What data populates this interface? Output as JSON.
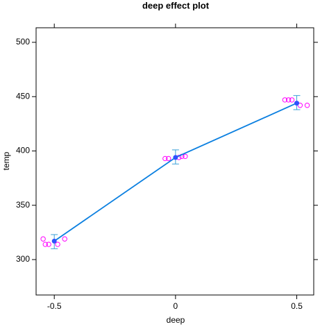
{
  "chart_data": {
    "type": "line",
    "title": "deep effect plot",
    "x_label": "deep",
    "y_label": "temp",
    "x": [
      -0.5,
      0,
      0.5
    ],
    "series": [
      {
        "color": "#0a7fe0",
        "values": [
          317,
          394,
          444
        ],
        "lower": [
          310,
          388,
          438
        ],
        "upper": [
          323,
          401,
          451
        ]
      }
    ],
    "points": {
      "color": "#ff00ff",
      "x": [
        -0.546,
        -0.537,
        -0.523,
        -0.486,
        -0.457,
        -0.043,
        -0.029,
        0.014,
        0.026,
        0.04,
        0.451,
        0.466,
        0.48,
        0.514,
        0.543
      ],
      "values": [
        319,
        314,
        314,
        314,
        319,
        393,
        393,
        394,
        395,
        395,
        447,
        447,
        447,
        442,
        442
      ]
    },
    "xlim": [
      -0.575,
      0.57
    ],
    "xticks": [
      -0.5,
      0,
      0.5
    ],
    "ylim": [
      267.4,
      513.4
    ],
    "yticks": [
      300,
      350,
      400,
      450,
      500
    ]
  }
}
